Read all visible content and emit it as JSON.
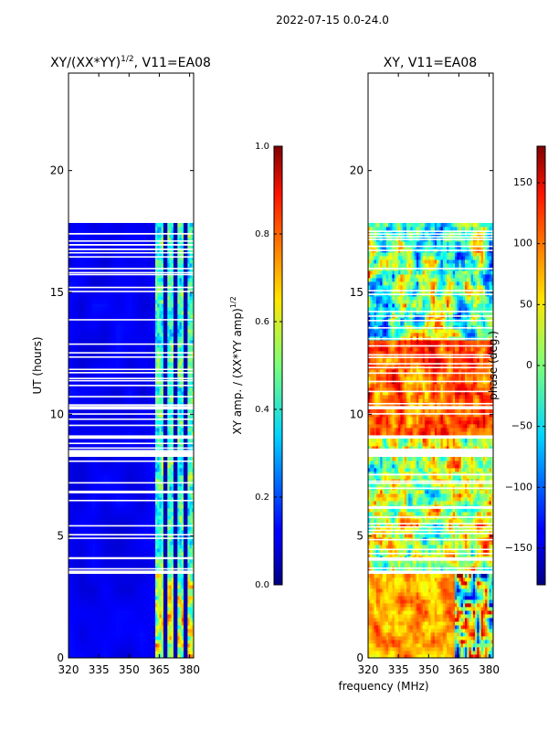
{
  "suptitle": "2022-07-15 0.0-24.0",
  "xlabel": "frequency (MHz)",
  "chart_data": [
    {
      "type": "heatmap",
      "title": "XY/(XX*YY)",
      "title_superscript": "1/2",
      "title_suffix": ", V11=EA08",
      "xlabel": "",
      "ylabel": "UT (hours)",
      "xlim": [
        320,
        382
      ],
      "ylim": [
        0,
        24
      ],
      "xticks": [
        320,
        335,
        350,
        365,
        380
      ],
      "yticks": [
        0,
        5,
        10,
        15,
        20
      ],
      "data_gaps_hours": [
        [
          3.4,
          3.55
        ],
        [
          8.3,
          8.5
        ],
        [
          8.95,
          9.2
        ],
        [
          9.55,
          9.65
        ],
        [
          10.2,
          10.3
        ],
        [
          17.8,
          22.45
        ],
        [
          22.55,
          24
        ]
      ],
      "active_band_mhz": [
        363,
        382
      ],
      "colorbar": {
        "label": "XY amp. / (XX*YY amp)",
        "label_superscript": "1/2",
        "range": [
          0.0,
          1.0
        ],
        "ticks": [
          "0.0",
          "0.2",
          "0.4",
          "0.6",
          "0.8",
          "1.0"
        ]
      }
    },
    {
      "type": "heatmap",
      "title": "XY, V11=EA08",
      "xlabel": "",
      "ylabel": "",
      "xlim": [
        320,
        382
      ],
      "ylim": [
        0,
        24
      ],
      "xticks": [
        320,
        335,
        350,
        365,
        380
      ],
      "yticks": [
        0,
        5,
        10,
        15,
        20
      ],
      "data_gaps_hours": [
        [
          3.4,
          3.55
        ],
        [
          8.3,
          8.5
        ],
        [
          8.95,
          9.2
        ],
        [
          9.55,
          9.65
        ],
        [
          10.2,
          10.3
        ],
        [
          17.8,
          22.45
        ],
        [
          22.55,
          24
        ]
      ],
      "colorbar": {
        "label": "phase (deg.)",
        "range": [
          -180,
          180
        ],
        "ticks": [
          "150",
          "100",
          "50",
          "0",
          "−50",
          "−100",
          "−150"
        ],
        "tick_values": [
          150,
          100,
          50,
          0,
          -50,
          -100,
          -150
        ]
      }
    }
  ]
}
